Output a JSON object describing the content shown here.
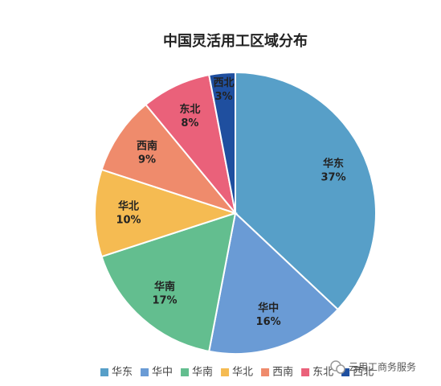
{
  "chart_data": {
    "type": "pie",
    "title": "中国灵活用工区域分布",
    "categories": [
      "华东",
      "华中",
      "华南",
      "华北",
      "西南",
      "东北",
      "西北"
    ],
    "values": [
      37,
      16,
      17,
      10,
      9,
      8,
      3
    ],
    "value_labels": [
      "37%",
      "16%",
      "17%",
      "10%",
      "9%",
      "8%",
      "3%"
    ],
    "colors": [
      "#579fc8",
      "#6a9bd5",
      "#63be8f",
      "#f5bb52",
      "#ef8b6c",
      "#ea617a",
      "#1f4f9f"
    ],
    "legend": "bottom"
  },
  "watermark": "云用工商务服务"
}
